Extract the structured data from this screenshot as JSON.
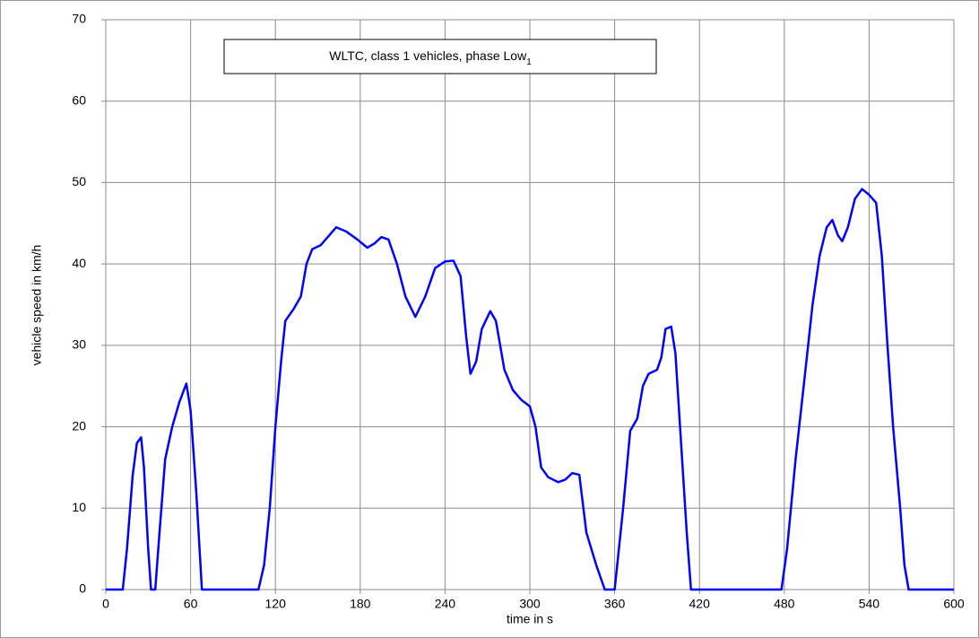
{
  "chart_data": {
    "type": "line",
    "title": "WLTC, class 1 vehicles, phase Low",
    "title_subscript": "1",
    "x_label": "time in s",
    "y_label": "vehicle speed in km/h",
    "xlim": [
      0,
      600
    ],
    "ylim": [
      0,
      70
    ],
    "xticks": [
      0,
      60,
      120,
      180,
      240,
      300,
      360,
      420,
      480,
      540,
      600
    ],
    "yticks": [
      0,
      10,
      20,
      30,
      40,
      50,
      60,
      70
    ],
    "grid": true,
    "series": [
      {
        "name": "vehicle speed",
        "color": "#0000ff",
        "x": [
          0,
          12,
          15,
          19,
          22,
          25,
          27,
          30,
          32,
          35,
          38,
          42,
          47,
          52,
          57,
          60,
          64,
          68,
          70,
          108,
          112,
          116,
          120,
          124,
          127,
          133,
          138,
          142,
          146,
          152,
          158,
          163,
          170,
          178,
          185,
          190,
          195,
          200,
          206,
          212,
          219,
          226,
          233,
          240,
          246,
          251,
          255,
          258,
          262,
          266,
          272,
          276,
          282,
          288,
          294,
          300,
          304,
          308,
          313,
          320,
          325,
          330,
          335,
          340,
          347,
          353,
          360,
          366,
          371,
          376,
          380,
          384,
          390,
          393,
          396,
          400,
          403,
          407,
          411,
          414,
          420,
          478,
          482,
          488,
          495,
          500,
          505,
          510,
          514,
          518,
          521,
          525,
          530,
          535,
          540,
          545,
          549,
          553,
          557,
          562,
          565,
          568,
          600
        ],
        "values": [
          0,
          0,
          5,
          14,
          18,
          18.7,
          15,
          5,
          0,
          0,
          7,
          16,
          20,
          23,
          25.3,
          22,
          12,
          0,
          0,
          0,
          3,
          10,
          20,
          28,
          33,
          34.5,
          36,
          40,
          41.8,
          42.3,
          43.5,
          44.5,
          44,
          43,
          42,
          42.5,
          43.3,
          43,
          40,
          36,
          33.5,
          36,
          39.5,
          40.3,
          40.4,
          38.5,
          31,
          26.5,
          28,
          32,
          34.2,
          33,
          27,
          24.5,
          23.3,
          22.5,
          20,
          15,
          13.8,
          13.2,
          13.5,
          14.3,
          14.1,
          7,
          3,
          0,
          0,
          10,
          19.5,
          21,
          25,
          26.5,
          27,
          28.5,
          32,
          32.3,
          29,
          18,
          7,
          0,
          0,
          0,
          5,
          16,
          27,
          35,
          41,
          44.5,
          45.4,
          43.5,
          42.8,
          44.5,
          48,
          49.2,
          48.5,
          47.5,
          41,
          30,
          20,
          10,
          3,
          0,
          0
        ]
      }
    ]
  }
}
